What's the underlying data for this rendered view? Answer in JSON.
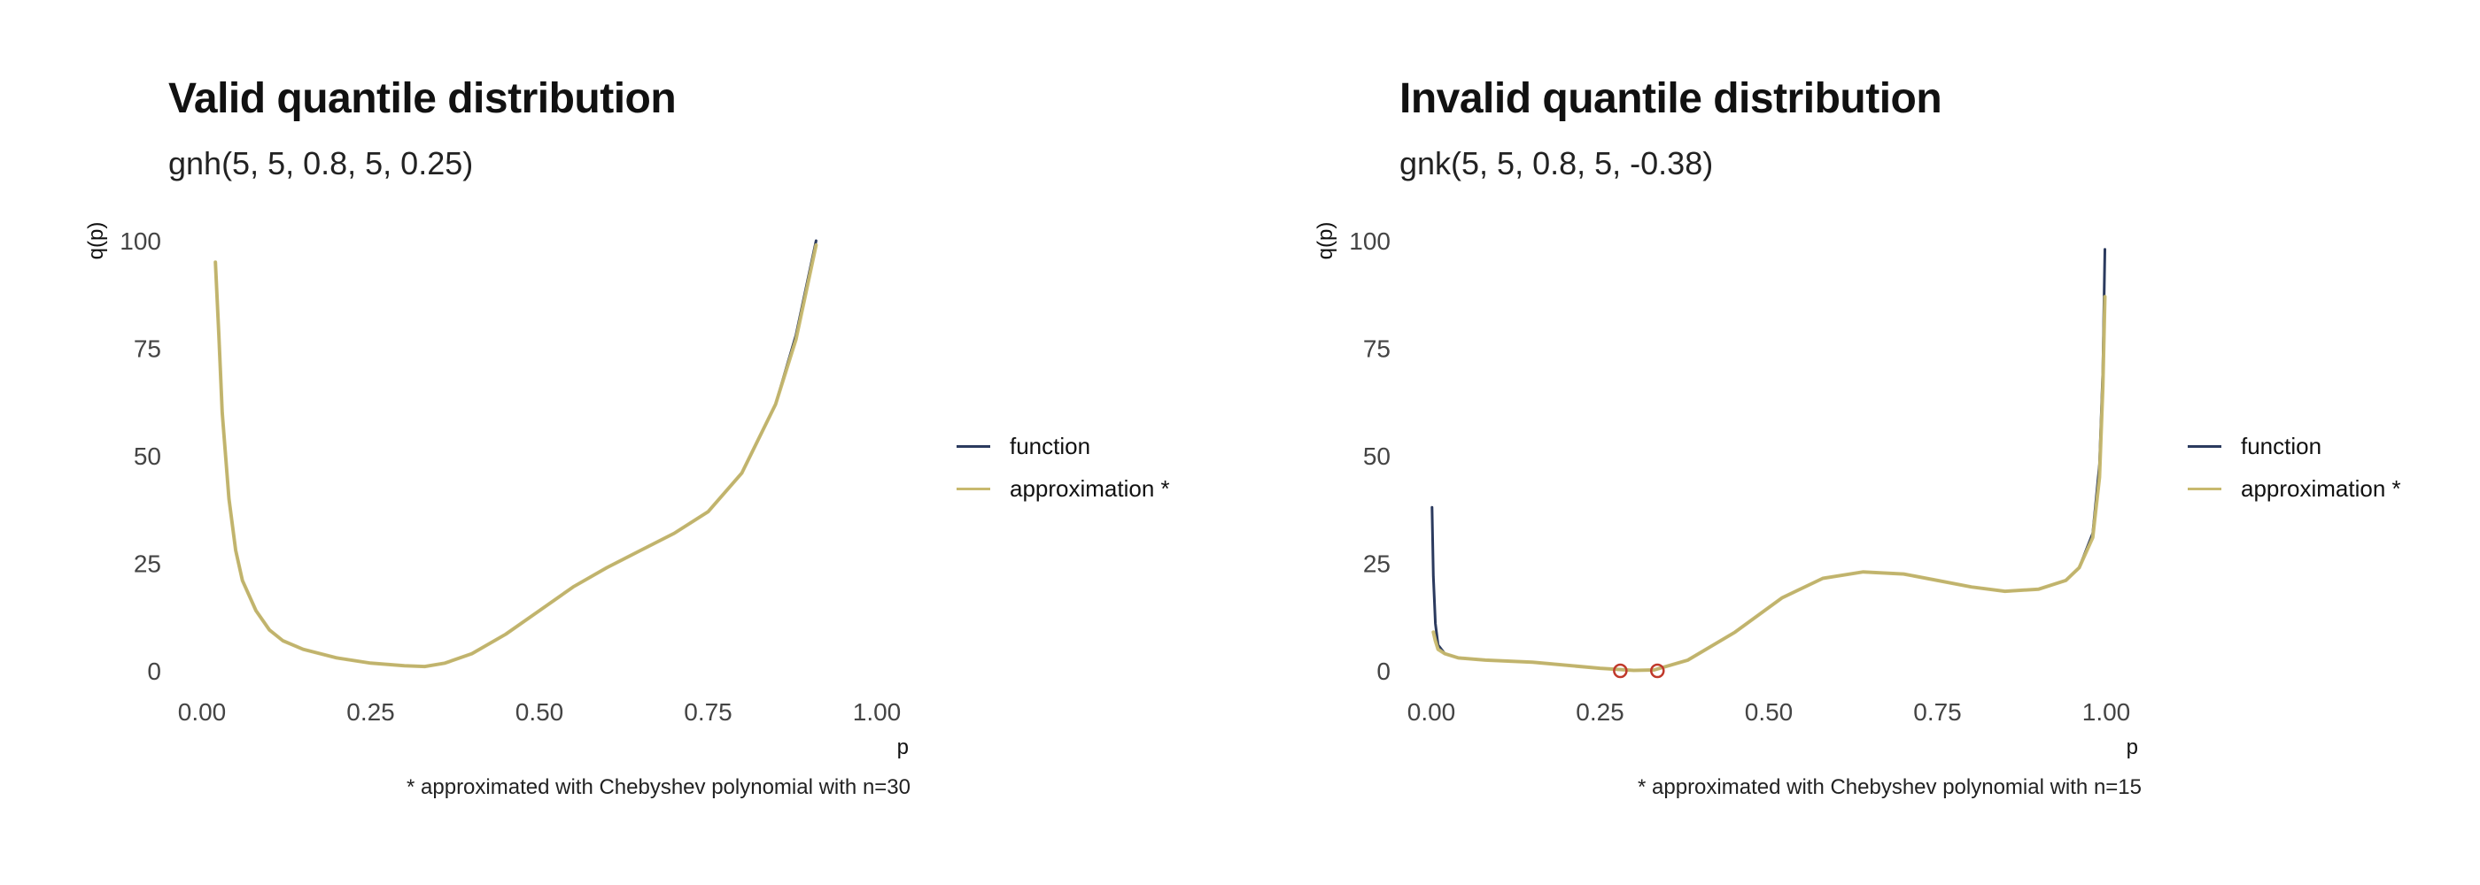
{
  "chart_data": [
    {
      "type": "line",
      "title": "Valid quantile distribution",
      "subtitle": "gnh(5, 5, 0.8, 5, 0.25)",
      "xlabel": "p",
      "ylabel": "q(p)",
      "xlim": [
        0,
        1
      ],
      "ylim": [
        0,
        100
      ],
      "xticks": [
        "0.00",
        "0.25",
        "0.50",
        "0.75",
        "1.00"
      ],
      "yticks": [
        "0",
        "25",
        "50",
        "75",
        "100"
      ],
      "grid": false,
      "legend_position": "right",
      "caption": "* approximated with Chebyshev polynomial with n=30",
      "colors": {
        "function": "#2b3a5e",
        "approximation": "#c8b96e",
        "marker": "#c0392b"
      },
      "series": [
        {
          "name": "function",
          "x": [
            0.02,
            0.025,
            0.03,
            0.04,
            0.05,
            0.06,
            0.08,
            0.1,
            0.12,
            0.15,
            0.2,
            0.25,
            0.3,
            0.33,
            0.36,
            0.4,
            0.45,
            0.5,
            0.55,
            0.6,
            0.65,
            0.7,
            0.75,
            0.8,
            0.85,
            0.88,
            0.91
          ],
          "y": [
            95,
            78,
            60,
            40,
            28,
            21,
            14,
            9.5,
            7,
            5,
            3,
            1.8,
            1.2,
            1,
            1.8,
            4,
            8.5,
            14,
            19.5,
            24,
            28,
            32,
            37,
            46,
            62,
            78,
            100
          ]
        },
        {
          "name": "approximation *",
          "x": [
            0.02,
            0.025,
            0.03,
            0.04,
            0.05,
            0.06,
            0.08,
            0.1,
            0.12,
            0.15,
            0.2,
            0.25,
            0.3,
            0.33,
            0.36,
            0.4,
            0.45,
            0.5,
            0.55,
            0.6,
            0.65,
            0.7,
            0.75,
            0.8,
            0.85,
            0.88,
            0.91
          ],
          "y": [
            95,
            78,
            60,
            40,
            28,
            21,
            14,
            9.5,
            7,
            5,
            3,
            1.8,
            1.2,
            1,
            1.8,
            4,
            8.5,
            14,
            19.5,
            24,
            28,
            32,
            37,
            46,
            62,
            77,
            99
          ]
        }
      ],
      "markers": []
    },
    {
      "type": "line",
      "title": "Invalid quantile distribution",
      "subtitle": "gnk(5, 5, 0.8, 5, -0.38)",
      "xlabel": "p",
      "ylabel": "q(p)",
      "xlim": [
        0,
        1
      ],
      "ylim": [
        0,
        100
      ],
      "xticks": [
        "0.00",
        "0.25",
        "0.50",
        "0.75",
        "1.00"
      ],
      "yticks": [
        "0",
        "25",
        "50",
        "75",
        "100"
      ],
      "grid": false,
      "legend_position": "right",
      "caption": "* approximated with Chebyshev polynomial with n=15",
      "colors": {
        "function": "#2b3a5e",
        "approximation": "#c8b96e",
        "marker": "#c0392b"
      },
      "series": [
        {
          "name": "function",
          "x": [
            0.001,
            0.003,
            0.006,
            0.01,
            0.02,
            0.04,
            0.08,
            0.15,
            0.25,
            0.3,
            0.33,
            0.38,
            0.45,
            0.52,
            0.58,
            0.64,
            0.7,
            0.75,
            0.8,
            0.85,
            0.9,
            0.94,
            0.96,
            0.98,
            0.99,
            0.995,
            0.998
          ],
          "y": [
            38,
            22,
            11,
            6,
            4,
            3,
            2.5,
            2,
            0.6,
            0.1,
            0.2,
            2.5,
            9,
            17,
            21.5,
            23,
            22.5,
            21,
            19.5,
            18.5,
            19,
            21,
            24,
            32,
            48,
            70,
            98
          ]
        },
        {
          "name": "approximation *",
          "x": [
            0.003,
            0.006,
            0.01,
            0.02,
            0.04,
            0.08,
            0.15,
            0.25,
            0.3,
            0.33,
            0.38,
            0.45,
            0.52,
            0.58,
            0.64,
            0.7,
            0.75,
            0.8,
            0.85,
            0.9,
            0.94,
            0.96,
            0.98,
            0.99,
            0.995,
            0.998
          ],
          "y": [
            9,
            7,
            5,
            4,
            3,
            2.5,
            2,
            0.6,
            0.1,
            0.2,
            2.5,
            9,
            17,
            21.5,
            23,
            22.5,
            21,
            19.5,
            18.5,
            19,
            21,
            24,
            31,
            45,
            66,
            87
          ]
        }
      ],
      "markers": [
        {
          "x": 0.28,
          "y": 0
        },
        {
          "x": 0.335,
          "y": 0
        }
      ]
    }
  ]
}
